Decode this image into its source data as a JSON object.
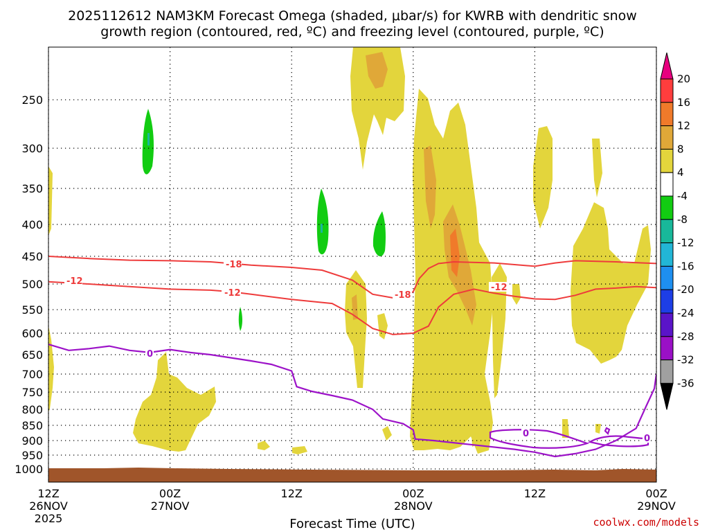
{
  "chart_data": {
    "type": "heatmap",
    "title_line1": "2025112612 NAM3KM Forecast Omega (shaded, μbar/s) for KWRB with dendritic snow",
    "title_line2": "growth region (contoured, red, ºC) and freezing level (contoured, purple, ºC)",
    "xlabel": "Forecast Time (UTC)",
    "credit": "coolwx.com/models",
    "x_ticks": [
      {
        "hour": 0,
        "time": "12Z",
        "date": "26NOV",
        "year": "2025"
      },
      {
        "hour": 12,
        "time": "00Z",
        "date": "27NOV",
        "year": ""
      },
      {
        "hour": 24,
        "time": "12Z",
        "date": "",
        "year": ""
      },
      {
        "hour": 36,
        "time": "00Z",
        "date": "28NOV",
        "year": ""
      },
      {
        "hour": 48,
        "time": "12Z",
        "date": "",
        "year": ""
      },
      {
        "hour": 60,
        "time": "00Z",
        "date": "29NOV",
        "year": ""
      }
    ],
    "xlim": [
      0,
      60
    ],
    "y_ticks": [
      250,
      300,
      350,
      400,
      450,
      500,
      550,
      600,
      650,
      700,
      750,
      800,
      850,
      900,
      950,
      1000
    ],
    "ylim_hpa": [
      200,
      1000
    ],
    "colorbar": {
      "labels": [
        "20",
        "16",
        "12",
        "8",
        "4",
        "-4",
        "-8",
        "-12",
        "-16",
        "-20",
        "-24",
        "-28",
        "-32",
        "-36"
      ],
      "colors_top_to_bottom": [
        "#ff3d3d",
        "#f07a2a",
        "#e0a838",
        "#e3d53c",
        "#ffffff",
        "#12cc12",
        "#18b89a",
        "#22b6d6",
        "#1e8ff0",
        "#1d3ee6",
        "#5a14c8",
        "#9a10c6",
        "#a0a0a0"
      ],
      "top_arrow_color": "#e8007f",
      "bottom_arrow_color": "#000000"
    },
    "colors": {
      "omega_4_8": "#e3d53c",
      "omega_8_12": "#e0a838",
      "omega_12_16": "#f07a2a",
      "omega_neg_4_8": "#12cc12",
      "omega_neg_8_12": "#18b89a",
      "dgz_contour": "#ee3b3b",
      "freezing_contour": "#9c12c8",
      "terrain": "#a0552a"
    },
    "contour_labels": {
      "dgz_minus18": "-18",
      "dgz_minus12": "-12",
      "freezing": "0"
    },
    "contours": {
      "dgz_minus18_hpa": [
        [
          0,
          450
        ],
        [
          4,
          454
        ],
        [
          8,
          457
        ],
        [
          12,
          458
        ],
        [
          16,
          460
        ],
        [
          18,
          463
        ],
        [
          20,
          466
        ],
        [
          24,
          470
        ],
        [
          27,
          475
        ],
        [
          30,
          493
        ],
        [
          32,
          520
        ],
        [
          34,
          527
        ],
        [
          35,
          524
        ],
        [
          36,
          515
        ],
        [
          36.6,
          490
        ],
        [
          37.5,
          472
        ],
        [
          38.5,
          463
        ],
        [
          40,
          460
        ],
        [
          44,
          462
        ],
        [
          48,
          468
        ],
        [
          50,
          462
        ],
        [
          52,
          458
        ],
        [
          56,
          460
        ],
        [
          60,
          463
        ]
      ],
      "dgz_minus12_hpa": [
        [
          0,
          496
        ],
        [
          4,
          500
        ],
        [
          8,
          505
        ],
        [
          12,
          510
        ],
        [
          16,
          512
        ],
        [
          18,
          515
        ],
        [
          20,
          520
        ],
        [
          24,
          530
        ],
        [
          28,
          538
        ],
        [
          30,
          560
        ],
        [
          32,
          590
        ],
        [
          34,
          603
        ],
        [
          36,
          600
        ],
        [
          37.5,
          585
        ],
        [
          38.5,
          545
        ],
        [
          40,
          520
        ],
        [
          42,
          510
        ],
        [
          44,
          518
        ],
        [
          46,
          524
        ],
        [
          48,
          529
        ],
        [
          50,
          530
        ],
        [
          52,
          522
        ],
        [
          54,
          510
        ],
        [
          56,
          508
        ],
        [
          58,
          505
        ],
        [
          60,
          507
        ]
      ],
      "freezing_hpa": [
        [
          0,
          626
        ],
        [
          2,
          640
        ],
        [
          4,
          636
        ],
        [
          6,
          630
        ],
        [
          8,
          640
        ],
        [
          10,
          645
        ],
        [
          12,
          638
        ],
        [
          14,
          645
        ],
        [
          16,
          650
        ],
        [
          18,
          658
        ],
        [
          20,
          666
        ],
        [
          22,
          675
        ],
        [
          24,
          692
        ],
        [
          24.5,
          735
        ],
        [
          26,
          748
        ],
        [
          28,
          760
        ],
        [
          30,
          773
        ],
        [
          32,
          800
        ],
        [
          33,
          830
        ],
        [
          35,
          845
        ],
        [
          36,
          865
        ],
        [
          36.2,
          895
        ],
        [
          38,
          900
        ],
        [
          42,
          915
        ],
        [
          46,
          930
        ],
        [
          48,
          940
        ],
        [
          50,
          955
        ],
        [
          52,
          945
        ],
        [
          54,
          930
        ],
        [
          56,
          900
        ],
        [
          57,
          880
        ],
        [
          58,
          860
        ],
        [
          59,
          790
        ],
        [
          59.8,
          740
        ],
        [
          60,
          700
        ]
      ]
    }
  }
}
